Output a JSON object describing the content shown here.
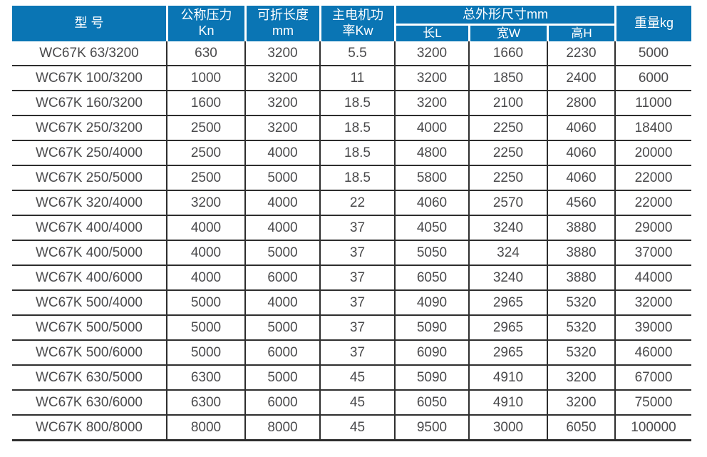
{
  "colors": {
    "header_bg": "#0a75b4",
    "header_text": "#ffffff",
    "body_text": "#4a4a4c",
    "grid_border": "#2e2e2e"
  },
  "table": {
    "columns": {
      "model": "型 号",
      "pressure": "公称压力\nKn",
      "fold_length": "可折长度\nmm",
      "motor_power": "主电机功\n率Kw",
      "dims_group": "总外形尺寸mm",
      "dim_l": "长L",
      "dim_w": "宽W",
      "dim_h": "高H",
      "weight": "重量kg"
    },
    "rows": [
      [
        "WC67K 63/3200",
        "630",
        "3200",
        "5.5",
        "3200",
        "1660",
        "2230",
        "5000"
      ],
      [
        "WC67K 100/3200",
        "1000",
        "3200",
        "11",
        "3200",
        "1850",
        "2400",
        "6000"
      ],
      [
        "WC67K 160/3200",
        "1600",
        "3200",
        "18.5",
        "3200",
        "2100",
        "2800",
        "11000"
      ],
      [
        "WC67K 250/3200",
        "2500",
        "3200",
        "18.5",
        "4000",
        "2250",
        "4060",
        "18400"
      ],
      [
        "WC67K 250/4000",
        "2500",
        "4000",
        "18.5",
        "4800",
        "2250",
        "4060",
        "20000"
      ],
      [
        "WC67K 250/5000",
        "2500",
        "5000",
        "18.5",
        "5800",
        "2250",
        "4060",
        "22000"
      ],
      [
        "WC67K 320/4000",
        "3200",
        "4000",
        "22",
        "4060",
        "2570",
        "4560",
        "22000"
      ],
      [
        "WC67K 400/4000",
        "4000",
        "4000",
        "37",
        "4050",
        "3240",
        "3880",
        "29000"
      ],
      [
        "WC67K 400/5000",
        "4000",
        "5000",
        "37",
        "5050",
        "324",
        "3880",
        "37000"
      ],
      [
        "WC67K 400/6000",
        "4000",
        "6000",
        "37",
        "6050",
        "3240",
        "3880",
        "44000"
      ],
      [
        "WC67K 500/4000",
        "5000",
        "4000",
        "37",
        "4090",
        "2965",
        "5320",
        "32000"
      ],
      [
        "WC67K 500/5000",
        "5000",
        "5000",
        "37",
        "5090",
        "2965",
        "5320",
        "39000"
      ],
      [
        "WC67K 500/6000",
        "5000",
        "6000",
        "37",
        "6090",
        "2965",
        "5320",
        "46000"
      ],
      [
        "WC67K 630/5000",
        "6300",
        "5000",
        "45",
        "5090",
        "4910",
        "3200",
        "67000"
      ],
      [
        "WC67K 630/6000",
        "6300",
        "6000",
        "45",
        "6050",
        "4910",
        "3200",
        "75000"
      ],
      [
        "WC67K 800/8000",
        "8000",
        "8000",
        "45",
        "9500",
        "3000",
        "6050",
        "100000"
      ]
    ]
  }
}
